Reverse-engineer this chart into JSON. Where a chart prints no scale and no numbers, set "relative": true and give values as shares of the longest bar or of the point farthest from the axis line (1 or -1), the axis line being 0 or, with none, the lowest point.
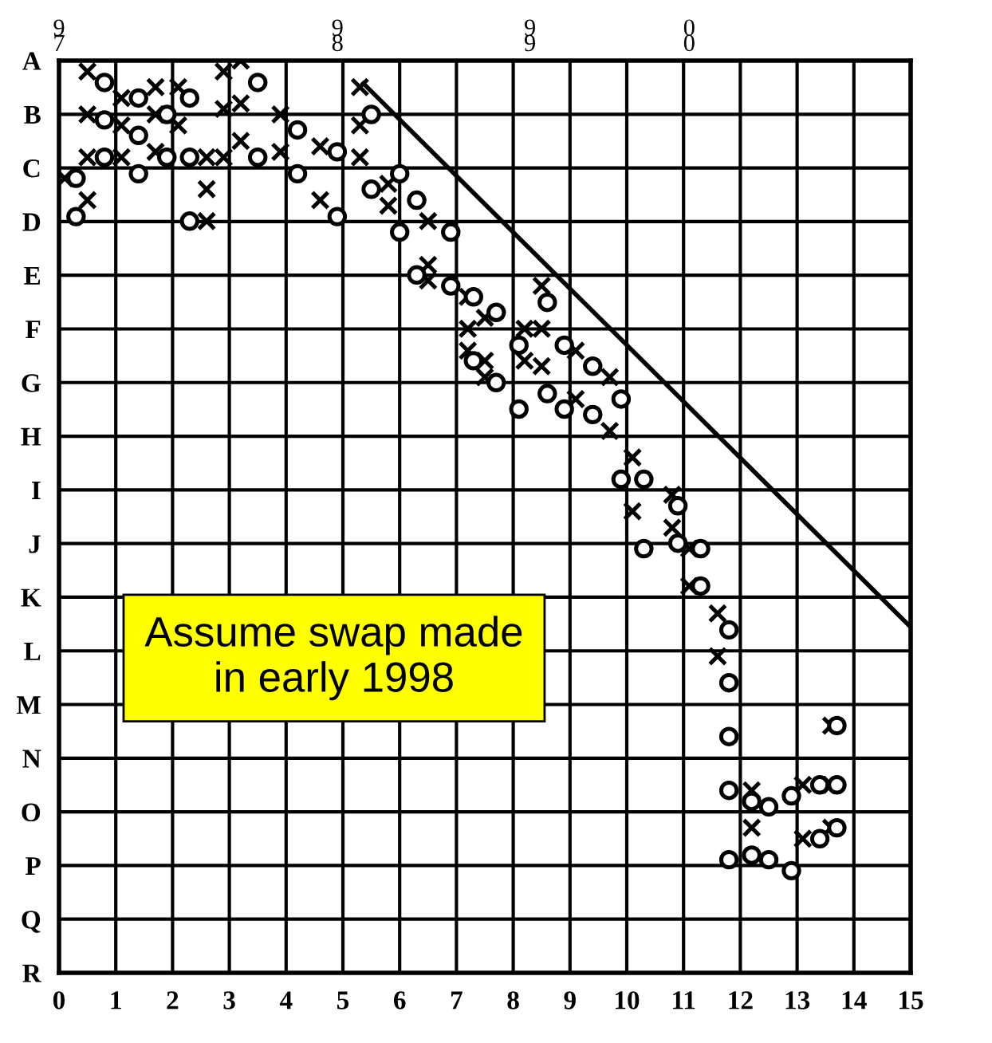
{
  "chart_data": {
    "type": "scatter",
    "relative": true,
    "xlim": [
      0,
      15
    ],
    "xticks": [
      0,
      1,
      2,
      3,
      4,
      5,
      6,
      7,
      8,
      9,
      10,
      11,
      12,
      13,
      14,
      15
    ],
    "y_categories": [
      "A",
      "B",
      "C",
      "D",
      "E",
      "F",
      "G",
      "H",
      "I",
      "J",
      "K",
      "L",
      "M",
      "N",
      "O",
      "P",
      "Q",
      "R"
    ],
    "grid": true,
    "series": [
      {
        "marker": "cross",
        "color": "#000000",
        "x": [
          0.1,
          0.5,
          0.5,
          0.5,
          0.5,
          1.1,
          1.1,
          1.1,
          1.7,
          1.7,
          1.7,
          2.1,
          2.1,
          2.6,
          2.6,
          2.6,
          2.9,
          2.9,
          2.9,
          3.2,
          3.2,
          3.2,
          3.9,
          3.9,
          4.6,
          4.6,
          5.3,
          5.3,
          5.3,
          5.8,
          5.8,
          6.5,
          6.5,
          6.5,
          7.2,
          7.2,
          7.2,
          7.5,
          7.5,
          7.5,
          8.2,
          8.2,
          8.5,
          8.5,
          8.5,
          9.1,
          9.1,
          9.7,
          9.7,
          10.1,
          10.1,
          10.8,
          10.8,
          11.1,
          11.1,
          11.6,
          11.6,
          12.2,
          12.2,
          13.1,
          13.1,
          13.6,
          13.6,
          13.6
        ],
        "values": [
          0.871,
          0.988,
          0.941,
          0.894,
          0.847,
          0.959,
          0.929,
          0.894,
          0.971,
          0.941,
          0.9,
          0.971,
          0.929,
          0.894,
          0.859,
          0.824,
          0.988,
          0.947,
          0.894,
          1,
          0.953,
          0.912,
          0.941,
          0.9,
          0.906,
          0.847,
          0.971,
          0.929,
          0.894,
          0.865,
          0.841,
          0.824,
          0.776,
          0.759,
          0.741,
          0.706,
          0.682,
          0.718,
          0.671,
          0.653,
          0.706,
          0.671,
          0.753,
          0.706,
          0.665,
          0.682,
          0.629,
          0.653,
          0.594,
          0.565,
          0.506,
          0.524,
          0.488,
          0.465,
          0.424,
          0.394,
          0.347,
          0.2,
          0.159,
          0.206,
          0.147,
          0.271,
          0.206,
          0.159
        ]
      },
      {
        "marker": "circle",
        "color": "#000000",
        "x": [
          0.3,
          0.3,
          0.8,
          0.8,
          0.8,
          1.4,
          1.4,
          1.4,
          1.9,
          1.9,
          2.3,
          2.3,
          2.3,
          3.5,
          3.5,
          4.2,
          4.2,
          4.9,
          4.9,
          5.5,
          5.5,
          6.0,
          6.0,
          6.3,
          6.3,
          6.9,
          6.9,
          7.3,
          7.3,
          7.7,
          7.7,
          8.1,
          8.1,
          8.6,
          8.6,
          8.9,
          8.9,
          9.4,
          9.4,
          9.9,
          9.9,
          10.3,
          10.3,
          10.9,
          10.9,
          11.3,
          11.3,
          11.8,
          11.8,
          11.8,
          11.8,
          11.8,
          12.2,
          12.2,
          12.5,
          12.5,
          12.9,
          12.9,
          13.4,
          13.4,
          13.7,
          13.7,
          13.7
        ],
        "values": [
          0.871,
          0.829,
          0.976,
          0.935,
          0.894,
          0.959,
          0.918,
          0.876,
          0.941,
          0.894,
          0.959,
          0.894,
          0.824,
          0.976,
          0.894,
          0.924,
          0.876,
          0.9,
          0.829,
          0.941,
          0.859,
          0.876,
          0.812,
          0.847,
          0.765,
          0.812,
          0.753,
          0.741,
          0.671,
          0.724,
          0.647,
          0.688,
          0.618,
          0.735,
          0.635,
          0.688,
          0.618,
          0.665,
          0.612,
          0.629,
          0.541,
          0.541,
          0.465,
          0.512,
          0.471,
          0.465,
          0.424,
          0.376,
          0.318,
          0.259,
          0.2,
          0.124,
          0.188,
          0.129,
          0.182,
          0.124,
          0.194,
          0.112,
          0.206,
          0.147,
          0.271,
          0.206,
          0.159
        ]
      },
      {
        "type": "line",
        "color": "#000000",
        "line_style": "solid",
        "marker": "none",
        "x": [
          5.36,
          15
        ],
        "values": [
          0.975,
          0.379
        ]
      }
    ],
    "legend": false,
    "annotations": [
      "9\n7",
      "9\n8",
      "9\n9",
      "0\n0",
      "Assume swap made\nin early 1998"
    ]
  }
}
